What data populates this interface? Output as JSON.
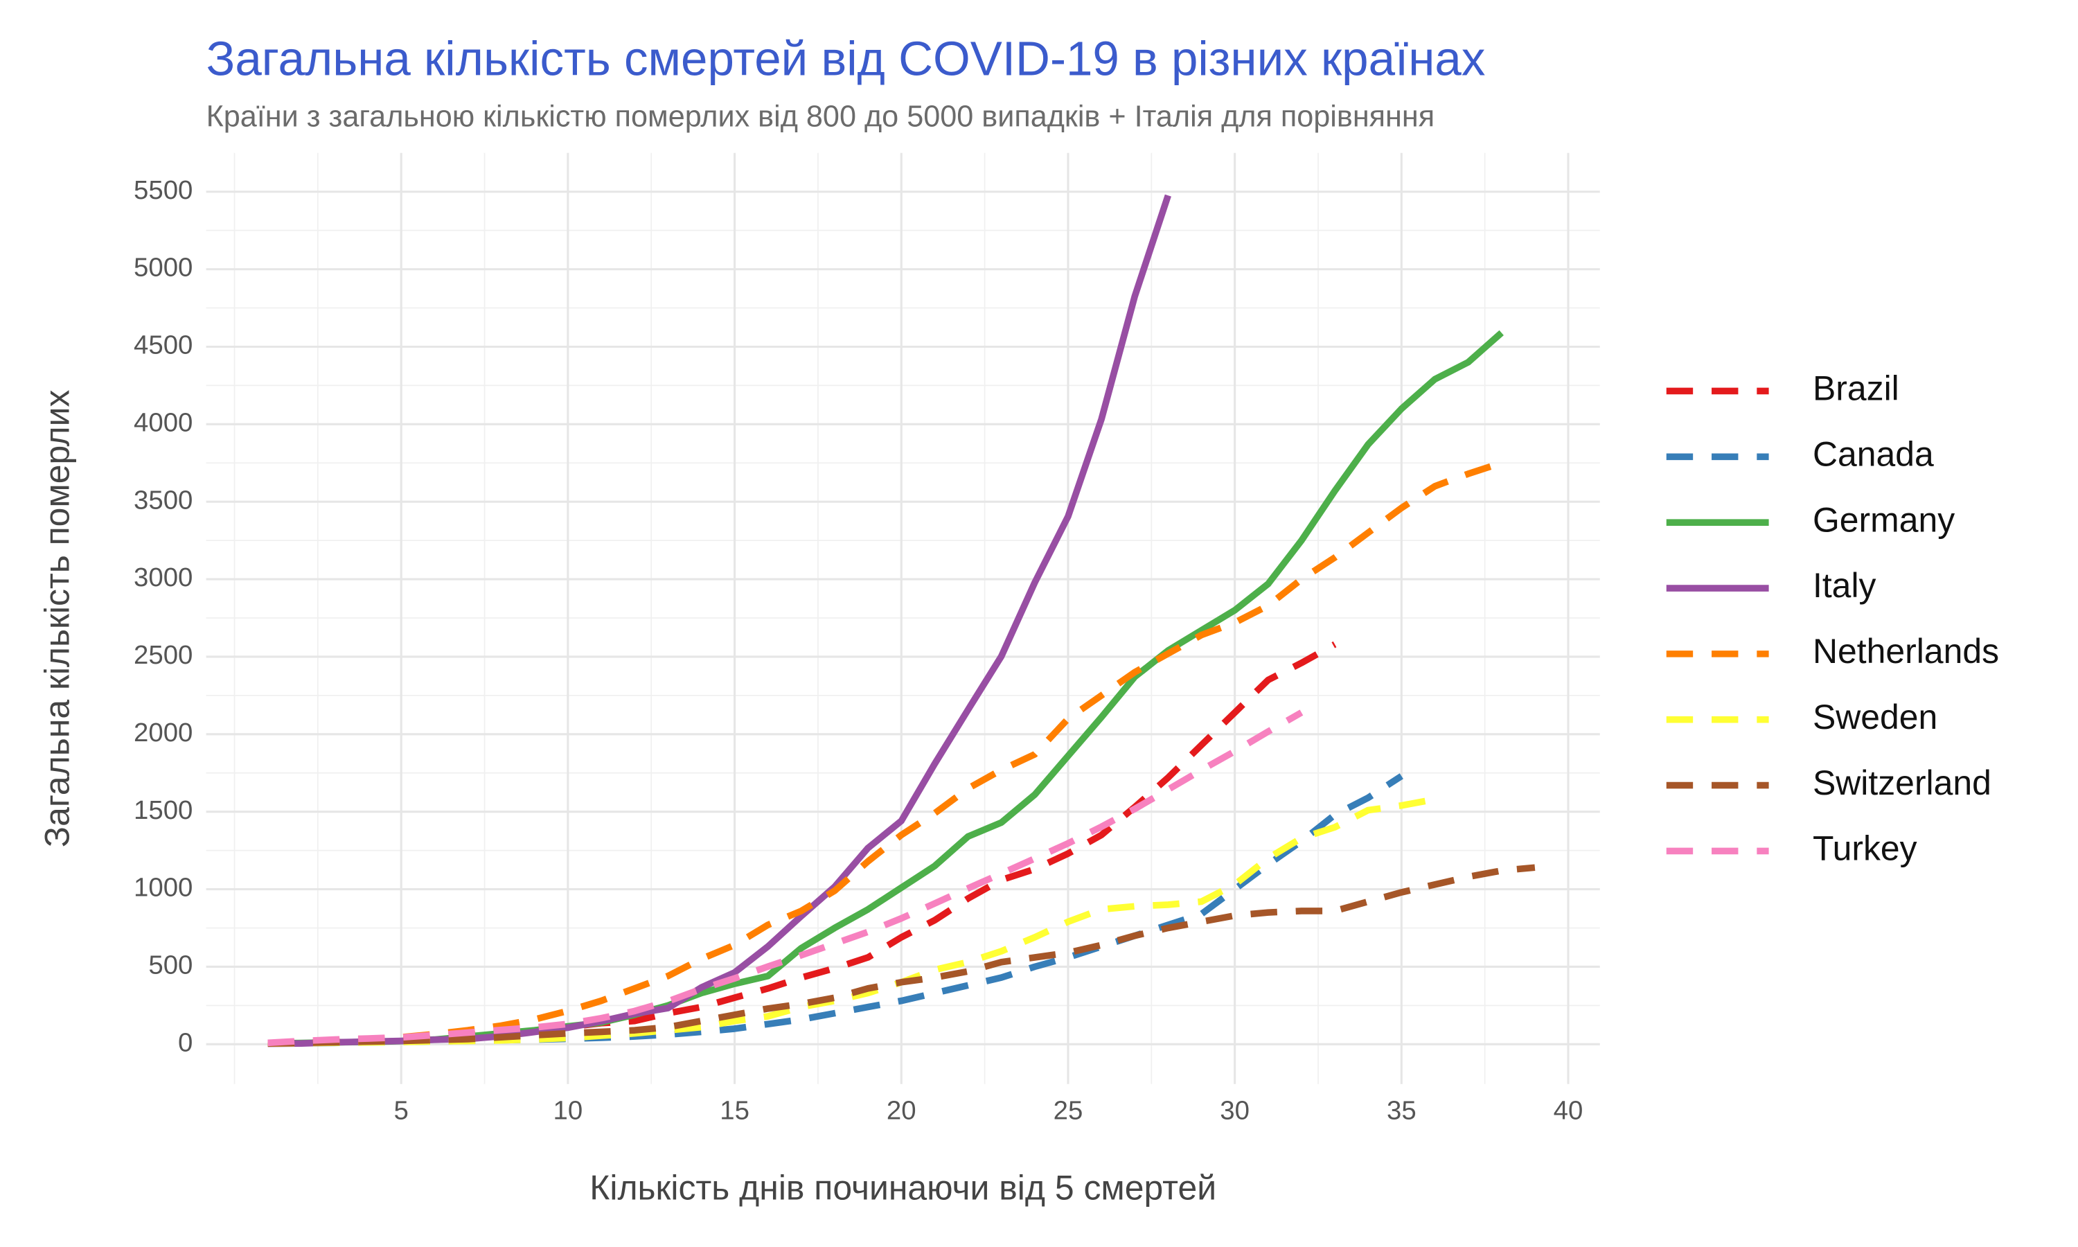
{
  "chart_data": {
    "type": "line",
    "title": "Загальна кількість смертей від COVID-19 в різних країнах",
    "subtitle": "Країни з загальною кількістю померлих від 800 до 5000 випадків + Італія для порівняння",
    "x_label": "Кількість днів починаючи від 5 смертей",
    "y_label": "Загальна кількість померлих",
    "x": [
      1,
      2,
      3,
      4,
      5,
      6,
      7,
      8,
      9,
      10,
      11,
      12,
      13,
      14,
      15,
      16,
      17,
      18,
      19,
      20,
      21,
      22,
      23,
      24,
      25,
      26,
      27,
      28,
      29,
      30,
      31,
      32,
      33,
      34,
      35,
      36,
      37,
      38,
      39
    ],
    "series": [
      {
        "name": "Brazil",
        "color": "#e41a1c",
        "linestyle": "dashed",
        "values": [
          6,
          11,
          18,
          25,
          34,
          46,
          58,
          77,
          92,
          111,
          136,
          150,
          200,
          240,
          300,
          360,
          430,
          490,
          560,
          690,
          800,
          940,
          1060,
          1130,
          1230,
          1350,
          1530,
          1720,
          1930,
          2140,
          2350,
          2460,
          2580,
          null,
          null,
          null,
          null,
          null,
          null
        ]
      },
      {
        "name": "Canada",
        "color": "#377eb8",
        "linestyle": "dashed",
        "values": [
          5,
          7,
          9,
          12,
          15,
          19,
          22,
          26,
          30,
          35,
          42,
          50,
          62,
          80,
          100,
          130,
          160,
          200,
          240,
          280,
          330,
          380,
          430,
          500,
          560,
          630,
          700,
          770,
          840,
          1000,
          1160,
          1310,
          1480,
          1590,
          1730,
          null,
          null,
          null,
          null
        ]
      },
      {
        "name": "Germany",
        "color": "#4daf4a",
        "linestyle": "solid",
        "values": [
          5,
          8,
          12,
          15,
          20,
          30,
          50,
          70,
          90,
          115,
          140,
          190,
          250,
          330,
          390,
          440,
          620,
          750,
          870,
          1010,
          1150,
          1340,
          1430,
          1610,
          1860,
          2110,
          2370,
          2540,
          2670,
          2800,
          2970,
          3250,
          3570,
          3870,
          4100,
          4290,
          4400,
          4590,
          null
        ]
      },
      {
        "name": "Italy",
        "color": "#984ea3",
        "linestyle": "solid",
        "values": [
          3,
          5,
          12,
          17,
          21,
          29,
          34,
          52,
          79,
          107,
          148,
          197,
          233,
          366,
          463,
          631,
          827,
          1016,
          1266,
          1441,
          1809,
          2158,
          2503,
          2978,
          3405,
          4032,
          4825,
          5476,
          null,
          null,
          null,
          null,
          null,
          null,
          null,
          null,
          null,
          null,
          null
        ]
      },
      {
        "name": "Netherlands",
        "color": "#ff7f00",
        "linestyle": "dashed",
        "values": [
          5,
          10,
          20,
          30,
          45,
          65,
          90,
          120,
          160,
          215,
          280,
          360,
          440,
          550,
          640,
          770,
          860,
          990,
          1180,
          1350,
          1490,
          1650,
          1770,
          1870,
          2100,
          2250,
          2400,
          2520,
          2640,
          2720,
          2830,
          3000,
          3140,
          3300,
          3460,
          3600,
          3680,
          3750,
          null
        ]
      },
      {
        "name": "Sweden",
        "color": "#ffff33",
        "linestyle": "dashed",
        "values": [
          5,
          7,
          10,
          12,
          15,
          18,
          21,
          25,
          32,
          40,
          55,
          70,
          90,
          110,
          150,
          180,
          240,
          280,
          330,
          400,
          480,
          530,
          600,
          690,
          790,
          870,
          890,
          900,
          920,
          1030,
          1200,
          1330,
          1400,
          1510,
          1540,
          1580,
          null,
          null,
          null
        ]
      },
      {
        "name": "Switzerland",
        "color": "#a65628",
        "linestyle": "dashed",
        "values": [
          5,
          9,
          13,
          17,
          21,
          27,
          33,
          45,
          58,
          70,
          80,
          90,
          110,
          150,
          190,
          230,
          260,
          300,
          360,
          400,
          430,
          470,
          530,
          560,
          590,
          640,
          700,
          750,
          790,
          830,
          850,
          860,
          860,
          920,
          980,
          1030,
          1080,
          1120,
          1140
        ]
      },
      {
        "name": "Turkey",
        "color": "#f781bf",
        "linestyle": "dashed",
        "values": [
          9,
          21,
          30,
          37,
          44,
          59,
          75,
          92,
          108,
          131,
          168,
          214,
          277,
          356,
          425,
          501,
          574,
          649,
          725,
          812,
          908,
          1006,
          1101,
          1198,
          1296,
          1403,
          1518,
          1643,
          1769,
          1890,
          2017,
          2140,
          null,
          null,
          null,
          null,
          null,
          null,
          null
        ]
      }
    ],
    "xlim": [
      -0.85,
      40.95
    ],
    "ylim": [
      -257,
      5750
    ],
    "xticks": [
      5,
      10,
      15,
      20,
      25,
      30,
      35,
      40
    ],
    "yticks": [
      0,
      500,
      1000,
      1500,
      2000,
      2500,
      3000,
      3500,
      4000,
      4500,
      5000,
      5500
    ],
    "x_minor_ticks": [
      0,
      2.5,
      7.5,
      12.5,
      17.5,
      22.5,
      27.5,
      32.5,
      37.5
    ],
    "y_minor_ticks": [
      250,
      750,
      1250,
      1750,
      2250,
      2750,
      3250,
      3750,
      4250,
      4750,
      5250
    ],
    "grid": true,
    "legend": "right"
  }
}
